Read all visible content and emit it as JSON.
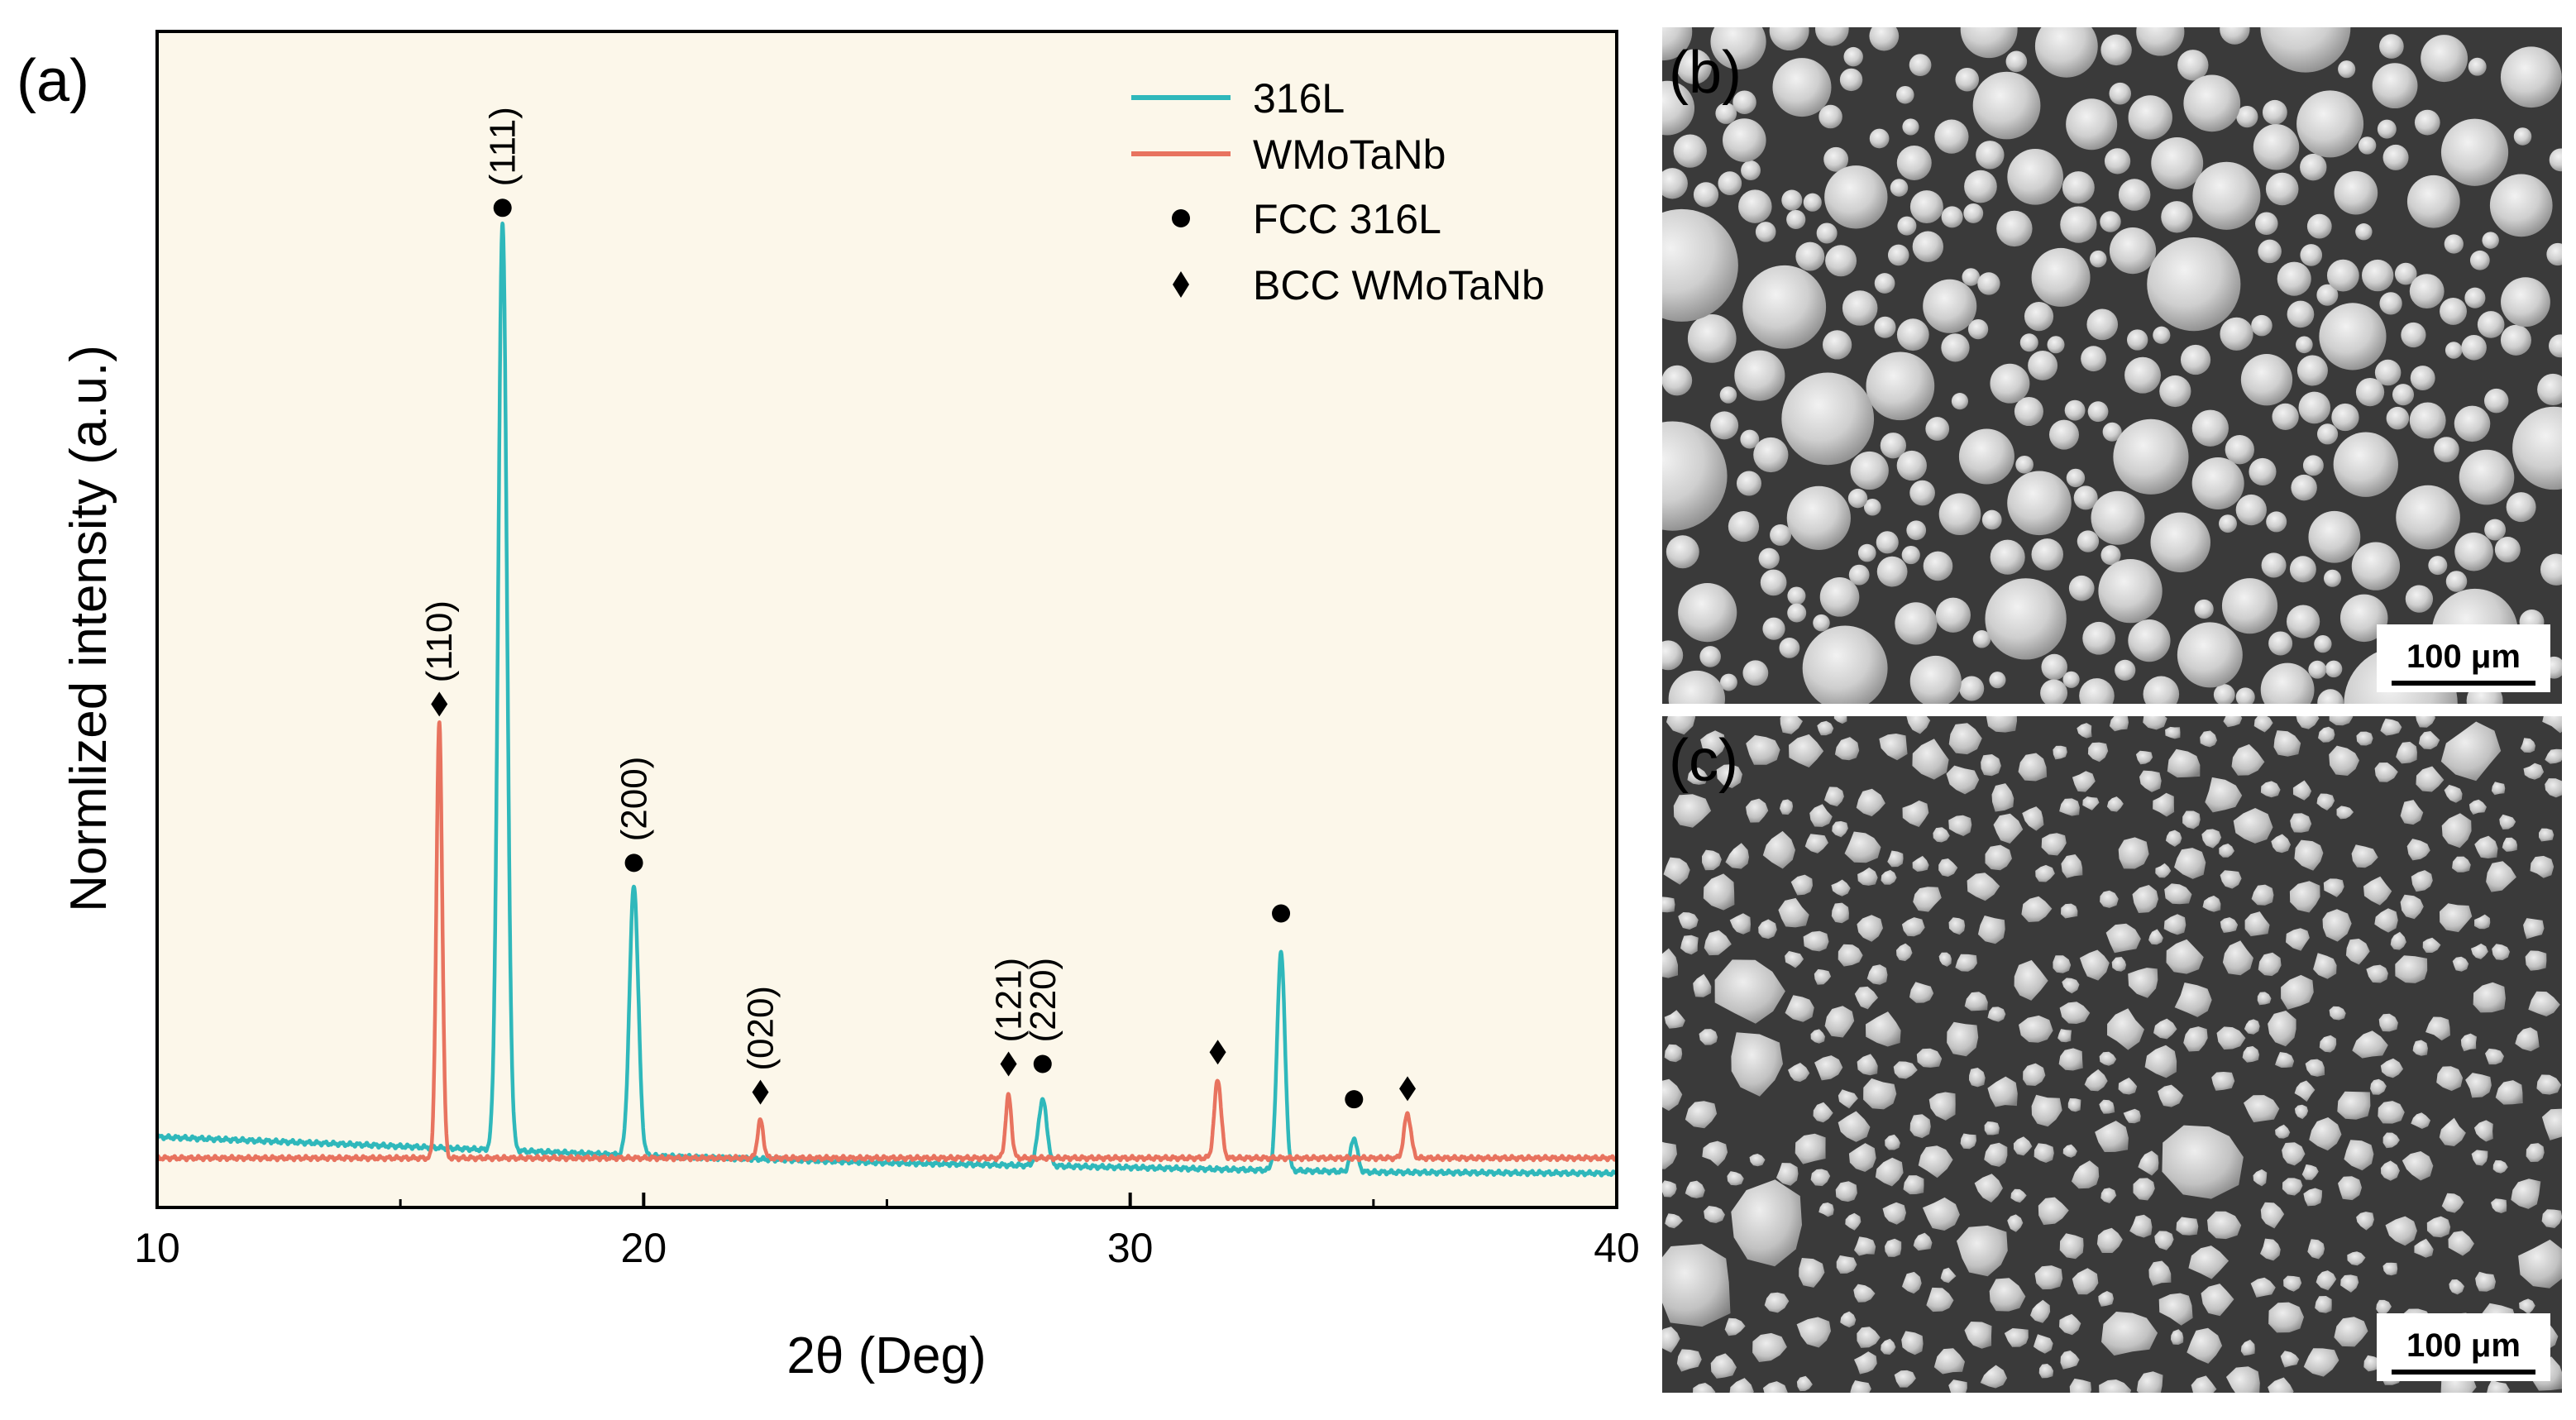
{
  "panels": {
    "a": "(a)",
    "b": "(b)",
    "c": "(c)"
  },
  "colors": {
    "plot_bg": "#fcf7ea",
    "series_316L": "#2fb8bb",
    "series_WMoTaNb": "#e8735f",
    "sem_bg": "#3a3a3a",
    "particle": "#c9c9c9"
  },
  "chart_data": {
    "type": "line",
    "title": "",
    "xlabel": "2θ (Deg)",
    "ylabel": "Normlized intensity (a.u.)",
    "xlim": [
      10,
      40
    ],
    "ylim": [
      0,
      100
    ],
    "xticks": [
      10,
      20,
      30,
      40
    ],
    "yticks_shown": false,
    "grid": false,
    "legend_position": "top-right",
    "legend": [
      {
        "label": "316L",
        "kind": "line",
        "color": "#2fb8bb"
      },
      {
        "label": "WMoTaNb",
        "kind": "line",
        "color": "#e8735f"
      },
      {
        "label": "FCC 316L",
        "kind": "circle",
        "color": "#000000"
      },
      {
        "label": "BCC WMoTaNb",
        "kind": "diamond",
        "color": "#000000"
      }
    ],
    "series": [
      {
        "name": "316L",
        "color": "#2fb8bb",
        "baseline": [
          [
            10,
            6.0
          ],
          [
            15,
            5.2
          ],
          [
            20,
            4.4
          ],
          [
            25,
            3.8
          ],
          [
            30,
            3.4
          ],
          [
            35,
            3.0
          ],
          [
            40,
            2.9
          ]
        ],
        "peaks": [
          {
            "x": 17.1,
            "height": 79.0,
            "width": 0.09
          },
          {
            "x": 19.8,
            "height": 23.0,
            "width": 0.09
          },
          {
            "x": 28.2,
            "height": 5.6,
            "width": 0.09
          },
          {
            "x": 33.1,
            "height": 18.6,
            "width": 0.08
          },
          {
            "x": 34.6,
            "height": 2.9,
            "width": 0.07
          }
        ]
      },
      {
        "name": "WMoTaNb",
        "color": "#e8735f",
        "baseline": [
          [
            10,
            4.2
          ],
          [
            40,
            4.2
          ]
        ],
        "peaks": [
          {
            "x": 15.8,
            "height": 37.0,
            "width": 0.06
          },
          {
            "x": 22.4,
            "height": 3.2,
            "width": 0.06
          },
          {
            "x": 27.5,
            "height": 5.3,
            "width": 0.06
          },
          {
            "x": 31.8,
            "height": 6.7,
            "width": 0.07
          },
          {
            "x": 35.7,
            "height": 3.8,
            "width": 0.07
          }
        ]
      }
    ],
    "annotations": [
      {
        "x": 15.8,
        "y": 42.8,
        "marker": "diamond",
        "label": "(110)"
      },
      {
        "x": 17.1,
        "y": 85.0,
        "marker": "circle",
        "label": "(111)"
      },
      {
        "x": 19.8,
        "y": 29.3,
        "marker": "circle",
        "label": "(200)"
      },
      {
        "x": 22.4,
        "y": 9.8,
        "marker": "diamond",
        "label": "(020)"
      },
      {
        "x": 27.5,
        "y": 12.2,
        "marker": "diamond",
        "label": "(121)"
      },
      {
        "x": 28.2,
        "y": 12.2,
        "marker": "circle",
        "label": "(220)"
      },
      {
        "x": 31.8,
        "y": 13.2,
        "marker": "diamond",
        "label": ""
      },
      {
        "x": 33.1,
        "y": 25.0,
        "marker": "circle",
        "label": ""
      },
      {
        "x": 34.6,
        "y": 9.2,
        "marker": "circle",
        "label": ""
      },
      {
        "x": 35.7,
        "y": 10.1,
        "marker": "diamond",
        "label": ""
      }
    ]
  },
  "micrographs": {
    "b": {
      "scale_bar": "100 μm",
      "morphology": "spherical"
    },
    "c": {
      "scale_bar": "100 μm",
      "morphology": "irregular"
    }
  }
}
